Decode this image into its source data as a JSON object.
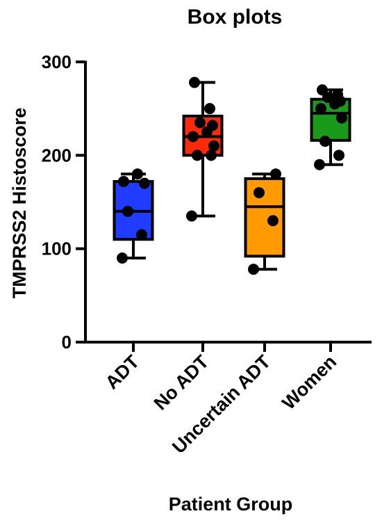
{
  "chart_data": {
    "type": "box",
    "title": "Box plots",
    "xlabel": "Patient Group",
    "ylabel": "TMPRSS2 Histoscore",
    "ylim": [
      0,
      300
    ],
    "yticks": [
      0,
      100,
      200,
      300
    ],
    "grid": false,
    "categories": [
      "ADT",
      "No ADT",
      "Uncertain ADT",
      "Women"
    ],
    "boxes": [
      {
        "category": "ADT",
        "color": "#1f3cff",
        "min": 90,
        "q1": 110,
        "median": 140,
        "q3": 172,
        "max": 180,
        "points": [
          90,
          115,
          140,
          170,
          172,
          180
        ]
      },
      {
        "category": "No ADT",
        "color": "#ff2a0a",
        "min": 135,
        "q1": 200,
        "median": 220,
        "q3": 242,
        "max": 278,
        "points": [
          135,
          200,
          200,
          210,
          220,
          225,
          232,
          235,
          250,
          278
        ]
      },
      {
        "category": "Uncertain ADT",
        "color": "#ff9a00",
        "min": 78,
        "q1": 92,
        "median": 145,
        "q3": 175,
        "max": 180,
        "points": [
          78,
          130,
          160,
          180
        ]
      },
      {
        "category": "Women",
        "color": "#1a9a1a",
        "min": 190,
        "q1": 216,
        "median": 245,
        "q3": 260,
        "max": 270,
        "points": [
          190,
          200,
          215,
          240,
          250,
          255,
          258,
          262,
          265,
          270
        ]
      }
    ]
  }
}
